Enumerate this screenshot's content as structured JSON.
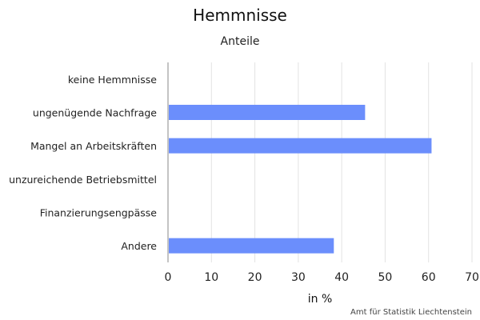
{
  "chart_data": {
    "type": "bar",
    "orientation": "horizontal",
    "title": "Hemmnisse",
    "subtitle": "Anteile",
    "xlabel": "in %",
    "ylabel": "",
    "categories": [
      "keine Hemmnisse",
      "ungenügende Nachfrage",
      "Mangel an Arbeitskräften",
      "unzureichende Betriebsmittel",
      "Finanzierungsengpässe",
      "Andere"
    ],
    "values": [
      0,
      45.2,
      60.5,
      0,
      0,
      38.0
    ],
    "xlim": [
      0,
      70
    ],
    "xticks": [
      "0",
      "10",
      "20",
      "30",
      "40",
      "50",
      "60",
      "70"
    ],
    "grid": true,
    "legend": "none",
    "colors": {
      "bar": "#6b8efc",
      "grid": "#e3e3e3",
      "axis": "#888888"
    }
  },
  "footer": {
    "credit": "Amt für Statistik Liechtenstein"
  }
}
